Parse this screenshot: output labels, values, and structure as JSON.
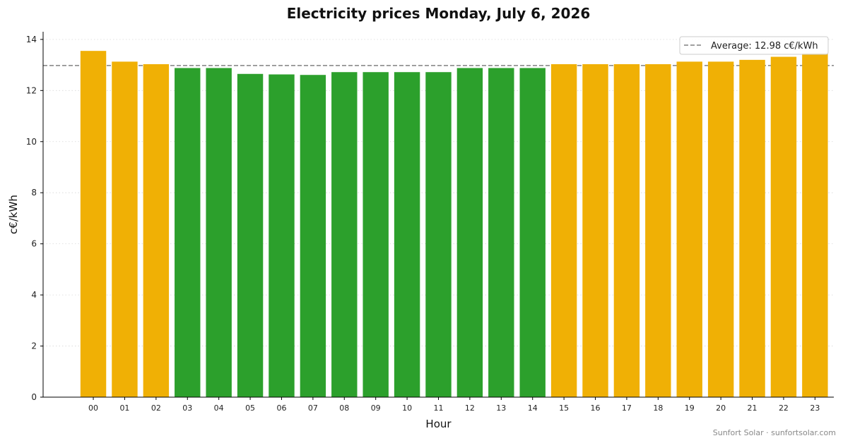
{
  "chart_data": {
    "type": "bar",
    "title": "Electricity prices Monday, July 6, 2026",
    "xlabel": "Hour",
    "ylabel": "c€/kWh",
    "ylim": [
      0,
      14.3
    ],
    "yticks": [
      0,
      2,
      4,
      6,
      8,
      10,
      12,
      14
    ],
    "grid": "horizontal dotted",
    "categories": [
      "00",
      "01",
      "02",
      "03",
      "04",
      "05",
      "06",
      "07",
      "08",
      "09",
      "10",
      "11",
      "12",
      "13",
      "14",
      "15",
      "16",
      "17",
      "18",
      "19",
      "20",
      "21",
      "22",
      "23"
    ],
    "values": [
      13.55,
      13.13,
      13.03,
      12.88,
      12.88,
      12.65,
      12.63,
      12.61,
      12.72,
      12.72,
      12.72,
      12.72,
      12.88,
      12.88,
      12.88,
      13.03,
      13.03,
      13.03,
      13.03,
      13.13,
      13.13,
      13.2,
      13.32,
      13.45
    ],
    "colors": {
      "above_average": "#f0b005",
      "below_average": "#2ca02c",
      "average_line": "#808080"
    },
    "average": {
      "value": 12.98,
      "label": "Average: 12.98 c€/kWh"
    },
    "legend_position": "top-right"
  },
  "footer": "Sunfort Solar · sunfortsolar.com"
}
